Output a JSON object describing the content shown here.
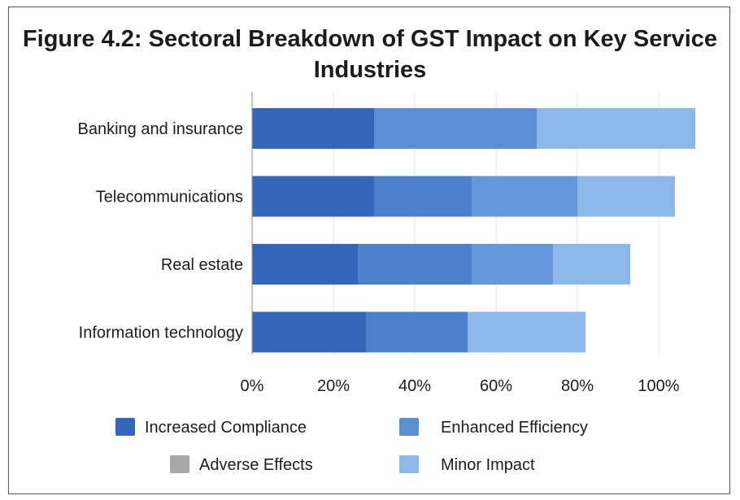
{
  "chart_data": {
    "type": "bar",
    "orientation": "horizontal",
    "stacked": true,
    "title": "Figure 4.2: Sectoral Breakdown of GST Impact on Key Service Industries",
    "categories": [
      "Banking and insurance",
      "Telecommunications",
      "Real estate",
      "Information technology"
    ],
    "x_ticks": [
      "0%",
      "20%",
      "40%",
      "60%",
      "80%",
      "100%"
    ],
    "xlim": [
      0,
      110
    ],
    "grid": true,
    "legend_position": "bottom",
    "segments": [
      [
        {
          "value": 30,
          "color": "#3366BB"
        },
        {
          "value": 40,
          "color": "#5B8FD4"
        },
        {
          "value": 39,
          "color": "#8CB8E8"
        }
      ],
      [
        {
          "value": 30,
          "color": "#3366BB"
        },
        {
          "value": 24,
          "color": "#4A80CC"
        },
        {
          "value": 26,
          "color": "#6598DA"
        },
        {
          "value": 24,
          "color": "#8CB8E8"
        }
      ],
      [
        {
          "value": 26,
          "color": "#3366BB"
        },
        {
          "value": 28,
          "color": "#4A80CC"
        },
        {
          "value": 20,
          "color": "#6598DA"
        },
        {
          "value": 19,
          "color": "#8CB8E8"
        }
      ],
      [
        {
          "value": 28,
          "color": "#3366BB"
        },
        {
          "value": 25,
          "color": "#4A80CC"
        },
        {
          "value": 29,
          "color": "#8CB8E8"
        }
      ]
    ],
    "legend": [
      {
        "label": "Increased Compliance",
        "color": "#3366BB"
      },
      {
        "label": "Enhanced Efficiency",
        "color": "#5B8FD4"
      },
      {
        "label": "Adverse Effects",
        "color": "#A8A8A8"
      },
      {
        "label": "Minor Impact",
        "color": "#8CB8E8"
      }
    ]
  }
}
